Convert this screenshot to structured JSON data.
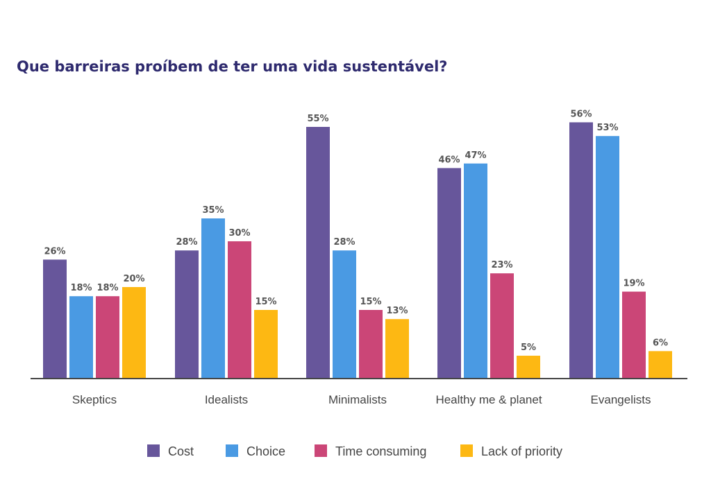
{
  "chart_data": {
    "type": "bar",
    "title": "Que barreiras proíbem de ter uma vida sustentável?",
    "xlabel": "",
    "ylabel": "",
    "categories": [
      "Skeptics",
      "Idealists",
      "Minimalists",
      "Healthy me & planet",
      "Evangelists"
    ],
    "series": [
      {
        "name": "Cost",
        "color": "#67569b",
        "values": [
          26,
          28,
          55,
          46,
          56
        ]
      },
      {
        "name": "Choice",
        "color": "#4a9ae3",
        "values": [
          18,
          35,
          28,
          47,
          53
        ]
      },
      {
        "name": "Time consuming",
        "color": "#cb4677",
        "values": [
          18,
          30,
          15,
          23,
          19
        ]
      },
      {
        "name": "Lack of priority",
        "color": "#fdb813",
        "values": [
          20,
          15,
          13,
          5,
          6
        ]
      }
    ],
    "value_suffix": "%",
    "ylim": [
      0,
      60
    ],
    "grid": false,
    "legend_position": "bottom"
  }
}
